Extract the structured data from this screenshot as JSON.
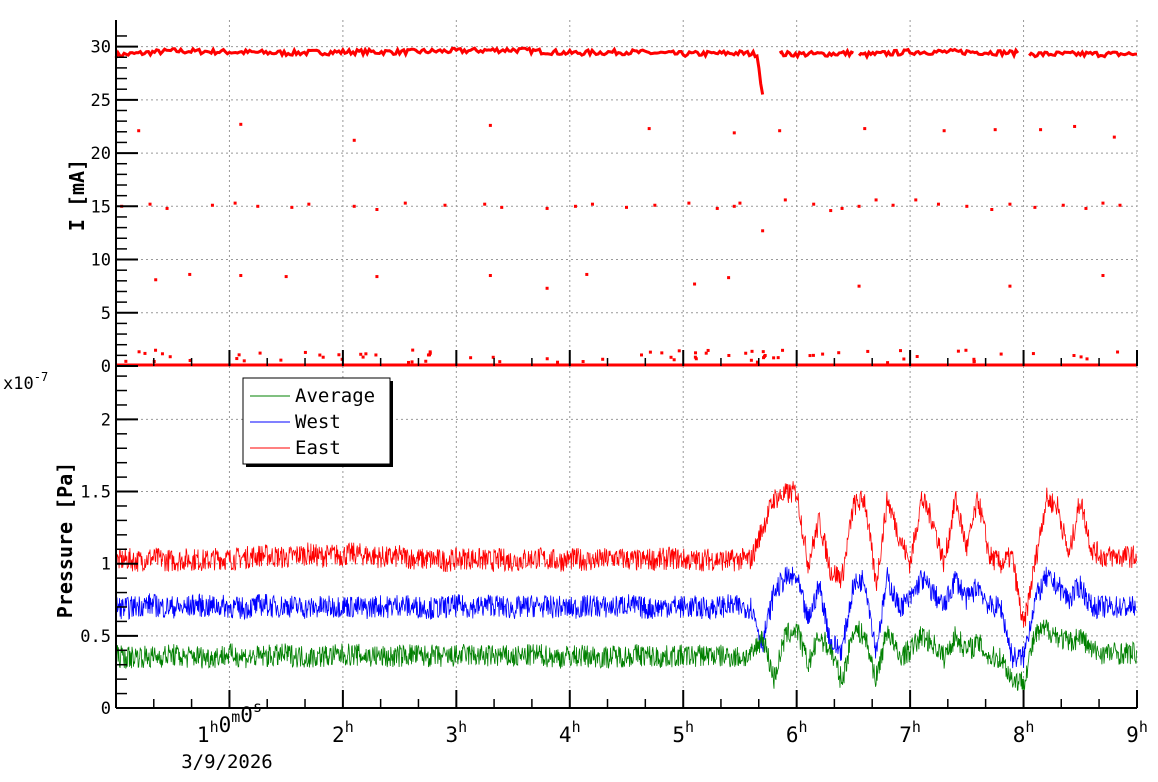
{
  "chart_data": [
    {
      "type": "scatter",
      "ylabel": "I [mA]",
      "ylim": [
        0,
        32.5
      ],
      "xlim_hours": [
        0,
        9
      ],
      "yticks": [
        "0",
        "5",
        "10",
        "15",
        "20",
        "25",
        "30"
      ],
      "grid": true,
      "color": "#ff0000",
      "main_trace": {
        "x_hours": [
          0,
          0.5,
          1,
          1.5,
          2,
          2.5,
          3,
          3.5,
          4,
          4.5,
          5,
          5.5,
          5.65,
          5.7,
          null,
          5.85,
          6.2,
          6.5,
          null,
          6.55,
          7,
          7.5,
          7.95,
          null,
          8.05,
          8.5,
          9
        ],
        "values": [
          29.2,
          29.6,
          29.5,
          29.4,
          29.5,
          29.5,
          29.6,
          29.7,
          29.4,
          29.5,
          29.3,
          29.4,
          29.3,
          25.5,
          null,
          29.3,
          29.3,
          29.4,
          null,
          29.2,
          29.5,
          29.5,
          29.4,
          null,
          29.3,
          29.3,
          29.3
        ]
      },
      "scattered_points": {
        "x_hours": [
          0.05,
          0.3,
          0.45,
          0.85,
          1.05,
          1.25,
          1.55,
          1.7,
          2.1,
          2.3,
          2.55,
          2.9,
          3.25,
          3.4,
          3.8,
          4.05,
          4.2,
          4.5,
          4.75,
          5.05,
          5.3,
          5.45,
          5.5,
          5.7,
          5.9,
          6.15,
          6.3,
          6.4,
          6.55,
          6.7,
          6.85,
          7.05,
          7.25,
          7.5,
          7.72,
          7.88,
          8.1,
          8.35,
          8.55,
          8.7,
          8.85,
          0.2,
          1.1,
          2.1,
          3.3,
          4.7,
          5.45,
          5.85,
          6.6,
          7.3,
          7.75,
          8.15,
          8.45,
          8.8,
          0.35,
          0.65,
          1.1,
          1.5,
          2.3,
          3.3,
          3.8,
          4.15,
          5.1,
          5.4,
          6.55,
          7.88,
          8.7
        ],
        "values": [
          15,
          15.2,
          14.8,
          15.1,
          15.3,
          15,
          14.9,
          15.2,
          15,
          14.7,
          15.3,
          15.1,
          15.2,
          14.9,
          14.8,
          15,
          15.2,
          14.9,
          15.1,
          15.3,
          14.8,
          15,
          15.3,
          12.7,
          15.6,
          15.2,
          14.6,
          14.8,
          15,
          15.6,
          15.1,
          15.6,
          15.2,
          15,
          14.7,
          15.2,
          14.9,
          15.1,
          14.8,
          15.3,
          15.1,
          22.1,
          22.7,
          21.2,
          22.6,
          22.3,
          21.9,
          22.1,
          22.3,
          22.1,
          22.2,
          22.2,
          22.5,
          21.5,
          8.1,
          8.6,
          8.5,
          8.4,
          8.4,
          8.5,
          7.3,
          8.6,
          7.7,
          8.3,
          7.5,
          7.5,
          8.5
        ]
      }
    },
    {
      "type": "line",
      "ylabel": "Pressure [Pa]",
      "yscale_label": "x10",
      "yscale_exponent": "-7",
      "ylim": [
        0,
        2.37
      ],
      "yticks": [
        "0",
        "0.5",
        "1",
        "1.5",
        "2"
      ],
      "grid": true,
      "x_hours": [
        0,
        0.1,
        0.2,
        0.3,
        0.4,
        0.5,
        0.6,
        0.7,
        0.8,
        0.9,
        1,
        1.1,
        1.2,
        1.3,
        1.4,
        1.5,
        1.6,
        1.7,
        1.8,
        1.9,
        2,
        2.1,
        2.2,
        2.3,
        2.4,
        2.5,
        2.6,
        2.7,
        2.8,
        2.9,
        3,
        3.1,
        3.2,
        3.3,
        3.4,
        3.5,
        3.6,
        3.7,
        3.8,
        3.9,
        4,
        4.1,
        4.2,
        4.3,
        4.4,
        4.5,
        4.6,
        4.7,
        4.8,
        4.9,
        5,
        5.1,
        5.2,
        5.3,
        5.4,
        5.5,
        5.6,
        5.7,
        5.8,
        5.9,
        6,
        6.1,
        6.2,
        6.3,
        6.4,
        6.5,
        6.6,
        6.7,
        6.8,
        6.9,
        7,
        7.1,
        7.2,
        7.3,
        7.4,
        7.5,
        7.6,
        7.7,
        7.8,
        7.9,
        8,
        8.1,
        8.2,
        8.3,
        8.4,
        8.5,
        8.6,
        8.7,
        8.8,
        8.9,
        9
      ],
      "xticks": [
        "1h0m0s",
        "2h",
        "3h",
        "4h",
        "5h",
        "6h",
        "7h",
        "8h",
        "9h"
      ],
      "xtick_hours": [
        1,
        2,
        3,
        4,
        5,
        6,
        7,
        8,
        9
      ],
      "date_label": "3/9/2026",
      "legend_position": "top-left",
      "series": [
        {
          "name": "Average",
          "color": "#008000",
          "values": [
            0.36,
            0.35,
            0.36,
            0.35,
            0.36,
            0.37,
            0.35,
            0.36,
            0.35,
            0.36,
            0.37,
            0.36,
            0.35,
            0.36,
            0.36,
            0.37,
            0.36,
            0.35,
            0.36,
            0.36,
            0.37,
            0.37,
            0.36,
            0.36,
            0.35,
            0.36,
            0.37,
            0.36,
            0.36,
            0.35,
            0.36,
            0.37,
            0.36,
            0.36,
            0.36,
            0.35,
            0.36,
            0.37,
            0.36,
            0.35,
            0.36,
            0.36,
            0.36,
            0.35,
            0.36,
            0.36,
            0.37,
            0.36,
            0.35,
            0.36,
            0.36,
            0.36,
            0.37,
            0.36,
            0.36,
            0.35,
            0.36,
            0.5,
            0.2,
            0.5,
            0.55,
            0.3,
            0.5,
            0.4,
            0.18,
            0.55,
            0.5,
            0.2,
            0.55,
            0.35,
            0.4,
            0.5,
            0.45,
            0.35,
            0.5,
            0.4,
            0.45,
            0.35,
            0.35,
            0.2,
            0.18,
            0.5,
            0.55,
            0.5,
            0.45,
            0.5,
            0.4,
            0.38,
            0.38,
            0.38,
            0.38
          ]
        },
        {
          "name": "West",
          "color": "#0000ff",
          "values": [
            0.7,
            0.69,
            0.71,
            0.72,
            0.7,
            0.7,
            0.69,
            0.72,
            0.7,
            0.71,
            0.7,
            0.69,
            0.7,
            0.72,
            0.7,
            0.71,
            0.7,
            0.69,
            0.7,
            0.7,
            0.71,
            0.7,
            0.69,
            0.71,
            0.7,
            0.72,
            0.7,
            0.7,
            0.69,
            0.7,
            0.71,
            0.7,
            0.7,
            0.72,
            0.7,
            0.69,
            0.7,
            0.71,
            0.7,
            0.7,
            0.69,
            0.7,
            0.71,
            0.7,
            0.7,
            0.72,
            0.7,
            0.69,
            0.7,
            0.71,
            0.7,
            0.7,
            0.69,
            0.7,
            0.71,
            0.7,
            0.7,
            0.45,
            0.8,
            0.9,
            0.9,
            0.6,
            0.85,
            0.45,
            0.4,
            0.85,
            0.9,
            0.4,
            0.9,
            0.7,
            0.75,
            0.9,
            0.8,
            0.7,
            0.9,
            0.75,
            0.85,
            0.7,
            0.7,
            0.35,
            0.35,
            0.75,
            0.9,
            0.85,
            0.75,
            0.85,
            0.7,
            0.7,
            0.7,
            0.7,
            0.7
          ]
        },
        {
          "name": "East",
          "color": "#ff0000",
          "values": [
            1.02,
            1.03,
            1.02,
            1.04,
            1.03,
            1.02,
            1.03,
            1.03,
            1.02,
            1.04,
            1.03,
            1.04,
            1.05,
            1.06,
            1.05,
            1.04,
            1.06,
            1.07,
            1.05,
            1.06,
            1.06,
            1.07,
            1.06,
            1.05,
            1.04,
            1.05,
            1.04,
            1.03,
            1.03,
            1.02,
            1.03,
            1.04,
            1.03,
            1.02,
            1.03,
            1.02,
            1.03,
            1.04,
            1.03,
            1.02,
            1.03,
            1.03,
            1.02,
            1.03,
            1.04,
            1.03,
            1.02,
            1.03,
            1.03,
            1.04,
            1.03,
            1.02,
            1.03,
            1.03,
            1.02,
            1.03,
            1.03,
            1.25,
            1.45,
            1.48,
            1.5,
            1.0,
            1.3,
            0.95,
            0.9,
            1.4,
            1.45,
            0.85,
            1.45,
            1.2,
            1.0,
            1.45,
            1.3,
            1.0,
            1.45,
            1.1,
            1.45,
            1.05,
            1.0,
            1.05,
            0.55,
            1.0,
            1.45,
            1.4,
            1.05,
            1.45,
            1.1,
            1.05,
            1.05,
            1.05,
            1.05
          ]
        }
      ]
    }
  ]
}
